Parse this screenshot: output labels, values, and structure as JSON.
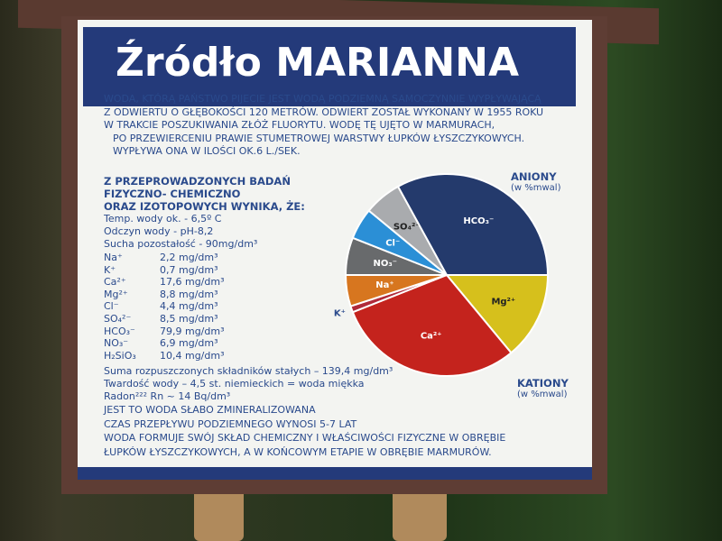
{
  "title": "Źródło MARIANNA",
  "intro": [
    "WODA, KTÓRĄ PAŃSTWO PIJECIE JEST WODĄ PODZIEMNĄ SAMOCZYNNIE WYPŁYWAJĄCĄ",
    "Z ODWIERTU O GŁĘBOKOŚCI 120 METRÓW. ODWIERT ZOSTAŁ WYKONANY W 1955 ROKU",
    "W TRAKCIE POSZUKIWANIA ZŁÓŻ FLUORYTU. WODĘ TĘ UJĘTO W MARMURACH,",
    "PO PRZEWIERCENIU PRAWIE STUMETROWEJ WARSTWY ŁUPKÓW ŁYSZCZYKOWYCH.",
    "WYPŁYWA ONA W ILOŚCI OK.6 L./SEK."
  ],
  "study_heading": [
    "Z PRZEPROWADZONYCH BADAŃ",
    "FIZYCZNO- CHEMICZNO",
    "ORAZ IZOTOPOWYCH WYNIKA, ŻE:"
  ],
  "properties": [
    "Temp. wody ok. - 6,5º C",
    "Odczyn wody - pH-8,2",
    "Sucha pozostałość - 90mg/dm³"
  ],
  "ions": [
    {
      "name": "Na⁺",
      "value": "2,2 mg/dm³"
    },
    {
      "name": "K⁺",
      "value": "0,7 mg/dm³"
    },
    {
      "name": "Ca²⁺",
      "value": "17,6 mg/dm³"
    },
    {
      "name": "Mg²⁺",
      "value": "8,8 mg/dm³"
    },
    {
      "name": "Cl⁻",
      "value": "4,4 mg/dm³"
    },
    {
      "name": "SO₄²⁻",
      "value": "8,5 mg/dm³"
    },
    {
      "name": "HCO₃⁻",
      "value": "79,9 mg/dm³"
    },
    {
      "name": "NO₃⁻",
      "value": "6,9 mg/dm³"
    },
    {
      "name": "H₂SiO₃",
      "value": "10,4 mg/dm³"
    }
  ],
  "summary": [
    "Suma rozpuszczonych składników stałych – 139,4 mg/dm³",
    "Twardość wody – 4,5 st. niemieckich = woda miękka",
    "Radon²²² Rn ~ 14 Bq/dm³"
  ],
  "conclusions": [
    "JEST TO WODA SŁABO ZMINERALIZOWANA",
    "CZAS PRZEPŁYWU PODZIEMNEGO WYNOSI 5-7 LAT",
    "WODA FORMUJE SWÓJ SKŁAD CHEMICZNY I WŁAŚCIWOŚCI FIZYCZNE W OBRĘBIE",
    "ŁUPKÓW ŁYSZCZYKOWYCH, A W KOŃCOWYM ETAPIE W OBRĘBIE MARMURÓW."
  ],
  "pie": {
    "anions_label": "ANIONY",
    "anions_unit": "(w %mwal)",
    "cations_label": "KATIONY",
    "cations_unit": "(w %mwal)",
    "slices": [
      {
        "label": "Mg²⁺",
        "share": 14,
        "color": "#d6c01c"
      },
      {
        "label": "Ca²⁺",
        "share": 30,
        "color": "#c4231d"
      },
      {
        "label": "K⁺",
        "share": 1,
        "color": "#b02a3a"
      },
      {
        "label": "Na⁺",
        "share": 5,
        "color": "#d7761f"
      },
      {
        "label": "NO₃⁻",
        "share": 6,
        "color": "#686a6c"
      },
      {
        "label": "Cl⁻",
        "share": 5,
        "color": "#2b8fd6"
      },
      {
        "label": "SO₄²⁻",
        "share": 6,
        "color": "#a9abae"
      },
      {
        "label": "HCO₃⁻",
        "share": 33,
        "color": "#243a6c"
      }
    ]
  }
}
